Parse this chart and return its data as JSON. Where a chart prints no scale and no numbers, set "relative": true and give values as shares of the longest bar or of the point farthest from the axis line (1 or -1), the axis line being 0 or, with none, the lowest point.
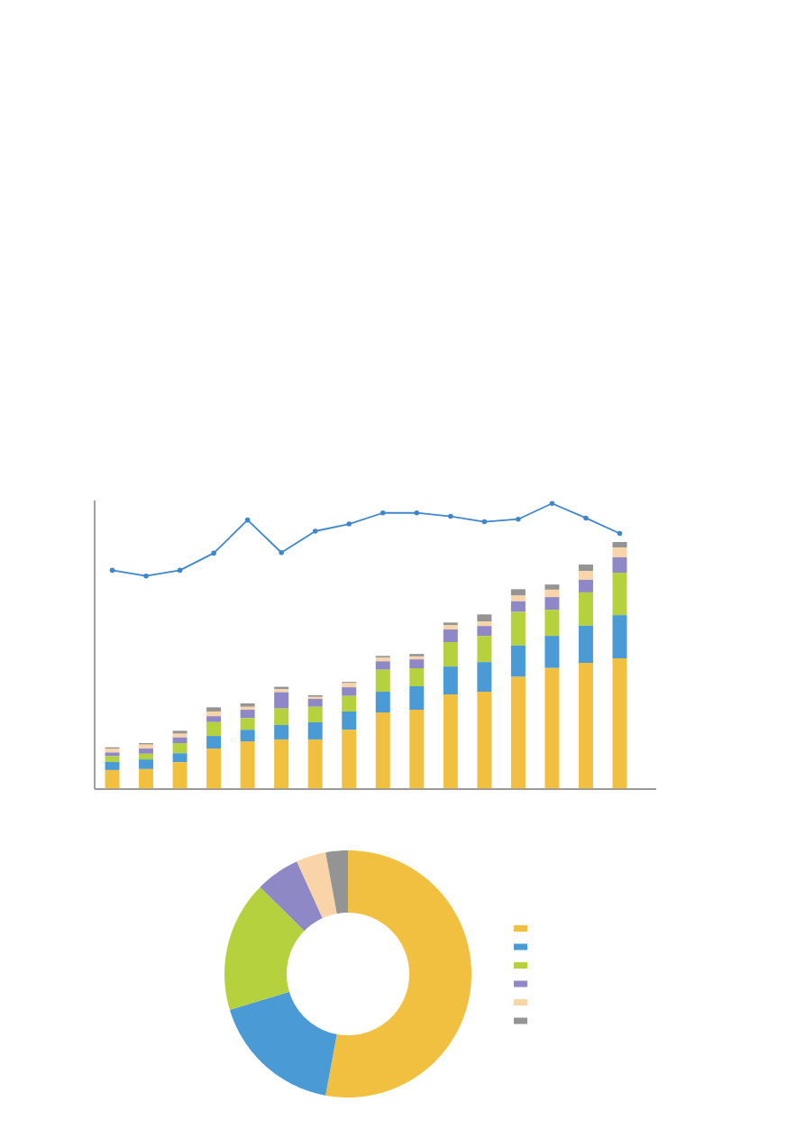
{
  "chart_data": [
    {
      "type": "bar",
      "stacked": true,
      "relative": true,
      "categories": [
        null,
        null,
        null,
        null,
        null,
        null,
        null,
        null,
        null,
        null,
        null,
        null,
        null,
        null,
        null,
        null
      ],
      "series": [
        {
          "color": "#f2c040",
          "values": [
            0.077,
            0.081,
            0.109,
            0.164,
            0.193,
            0.201,
            0.201,
            0.24,
            0.31,
            0.321,
            0.383,
            0.394,
            0.454,
            0.49,
            0.511,
            0.529
          ]
        },
        {
          "color": "#4a9ad6",
          "values": [
            0.033,
            0.039,
            0.036,
            0.051,
            0.047,
            0.058,
            0.069,
            0.074,
            0.084,
            0.095,
            0.113,
            0.12,
            0.127,
            0.13,
            0.15,
            0.175
          ]
        },
        {
          "color": "#b5d13e",
          "values": [
            0.023,
            0.023,
            0.041,
            0.056,
            0.047,
            0.067,
            0.063,
            0.063,
            0.089,
            0.073,
            0.099,
            0.106,
            0.136,
            0.106,
            0.135,
            0.172
          ]
        },
        {
          "color": "#8e88c6",
          "values": [
            0.015,
            0.021,
            0.023,
            0.024,
            0.034,
            0.066,
            0.032,
            0.035,
            0.034,
            0.036,
            0.051,
            0.04,
            0.043,
            0.051,
            0.051,
            0.062
          ]
        },
        {
          "color": "#f8d4a8",
          "values": [
            0.015,
            0.016,
            0.015,
            0.019,
            0.012,
            0.012,
            0.008,
            0.017,
            0.016,
            0.012,
            0.017,
            0.018,
            0.023,
            0.03,
            0.036,
            0.04
          ]
        },
        {
          "color": "#949494",
          "values": [
            0.006,
            0.006,
            0.012,
            0.017,
            0.014,
            0.01,
            0.007,
            0.005,
            0.006,
            0.01,
            0.011,
            0.029,
            0.026,
            0.021,
            0.026,
            0.022
          ]
        }
      ]
    },
    {
      "type": "line",
      "relative": true,
      "marker": "circle",
      "categories": [
        null,
        null,
        null,
        null,
        null,
        null,
        null,
        null,
        null,
        null,
        null,
        null,
        null,
        null,
        null,
        null
      ],
      "series": [
        {
          "color": "#3f86cd",
          "values": [
            0.766,
            0.746,
            0.766,
            0.826,
            0.942,
            0.828,
            0.903,
            0.928,
            0.967,
            0.967,
            0.955,
            0.936,
            0.945,
            1,
            0.949,
            0.895
          ]
        }
      ]
    },
    {
      "type": "donut",
      "categories": [
        null,
        null,
        null,
        null,
        null,
        null
      ],
      "values": [
        52.9,
        17.4,
        17.1,
        5.8,
        3.9,
        2.9
      ],
      "colors": [
        "#f2c040",
        "#4a9ad6",
        "#b5d13e",
        "#8e88c6",
        "#f8d4a8",
        "#949494"
      ]
    }
  ]
}
